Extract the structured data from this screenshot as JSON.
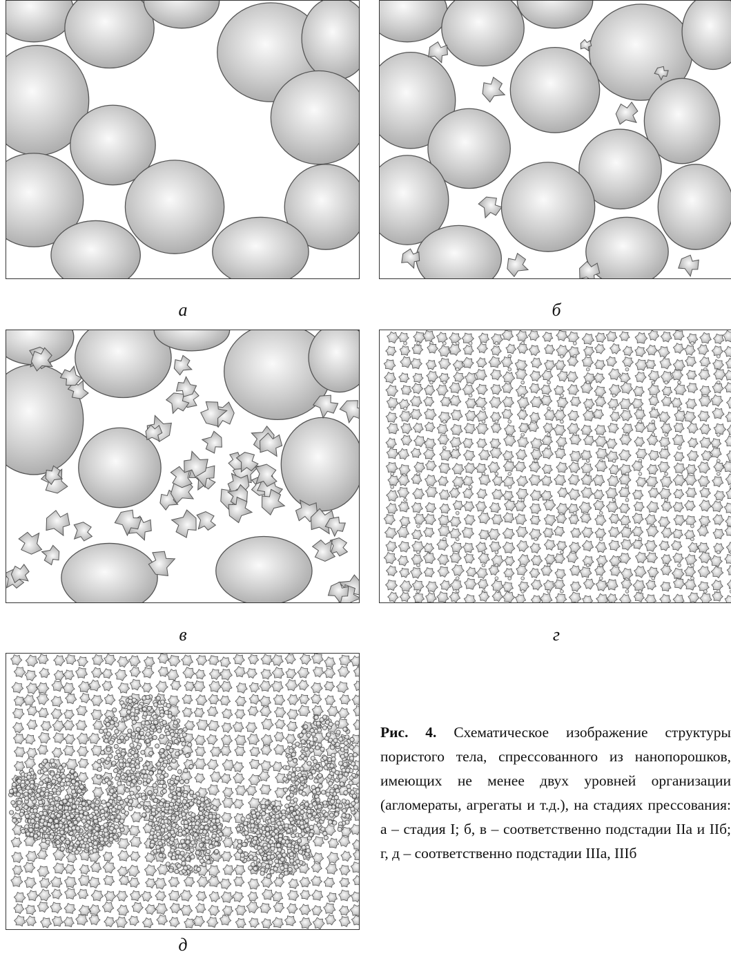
{
  "figure": {
    "panels": [
      {
        "id": "a",
        "label": "а",
        "particles": "large-spheres"
      },
      {
        "id": "b",
        "label": "б",
        "particles": "large-spheres-with-fragments"
      },
      {
        "id": "v",
        "label": "в",
        "particles": "large-spheres-many-fragments"
      },
      {
        "id": "g",
        "label": "г",
        "particles": "fine-aggregates"
      },
      {
        "id": "d",
        "label": "д",
        "particles": "fine-aggregates-with-clusters"
      }
    ],
    "caption_prefix": "Рис. 4.",
    "caption_text": "Схематическое изображение структуры пористого тела, спрессованного из нанопорошков, имеющих не менее двух уровней организации (агломераты, агрегаты и т.д.), на стадиях прессования: а – стадия I; б, в – соответственно подстадии IIа и IIб; г, д – соответственно подстадии IIIа, IIIб"
  }
}
